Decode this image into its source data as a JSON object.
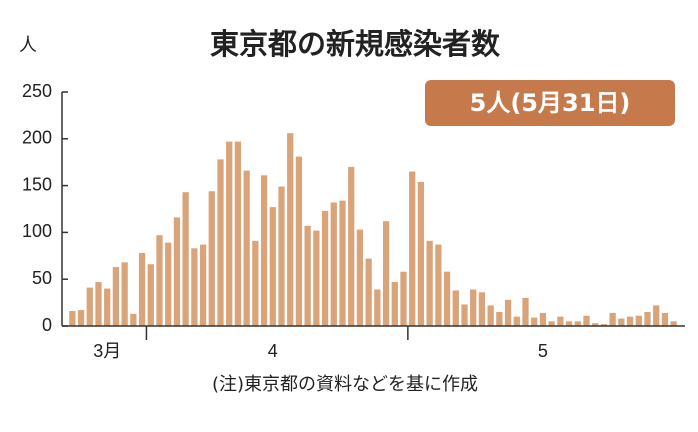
{
  "chart_data": {
    "type": "bar",
    "title": "東京都の新規感染者数",
    "y_unit": "人",
    "badge": "5人(5月31日)",
    "note": "(注)東京都の資料などを基に作成",
    "color": "#d9a47a",
    "ylim": [
      0,
      250
    ],
    "yticks": [
      0,
      50,
      100,
      150,
      200,
      250
    ],
    "categories": [
      null,
      null,
      null,
      null,
      "3月",
      null,
      null,
      null,
      null,
      null,
      null,
      null,
      null,
      null,
      null,
      null,
      null,
      null,
      null,
      null,
      null,
      null,
      null,
      "4",
      null,
      null,
      null,
      null,
      null,
      null,
      null,
      null,
      null,
      null,
      null,
      null,
      null,
      null,
      null,
      null,
      null,
      null,
      null,
      null,
      null,
      null,
      null,
      null,
      null,
      null,
      null,
      null,
      null,
      null,
      "5",
      null,
      null,
      null,
      null,
      null,
      null,
      null,
      null,
      null,
      null,
      null,
      null,
      null,
      null,
      null
    ],
    "values": [
      16,
      17,
      41,
      47,
      40,
      63,
      68,
      13,
      78,
      66,
      97,
      89,
      116,
      143,
      83,
      87,
      144,
      178,
      197,
      197,
      166,
      91,
      161,
      127,
      149,
      206,
      181,
      107,
      102,
      123,
      132,
      134,
      170,
      103,
      72,
      39,
      112,
      47,
      58,
      165,
      154,
      91,
      87,
      58,
      38,
      23,
      39,
      36,
      22,
      15,
      28,
      10,
      30,
      9,
      14,
      5,
      10,
      5,
      5,
      11,
      3,
      2,
      14,
      8,
      10,
      11,
      15,
      22,
      14,
      5
    ]
  }
}
